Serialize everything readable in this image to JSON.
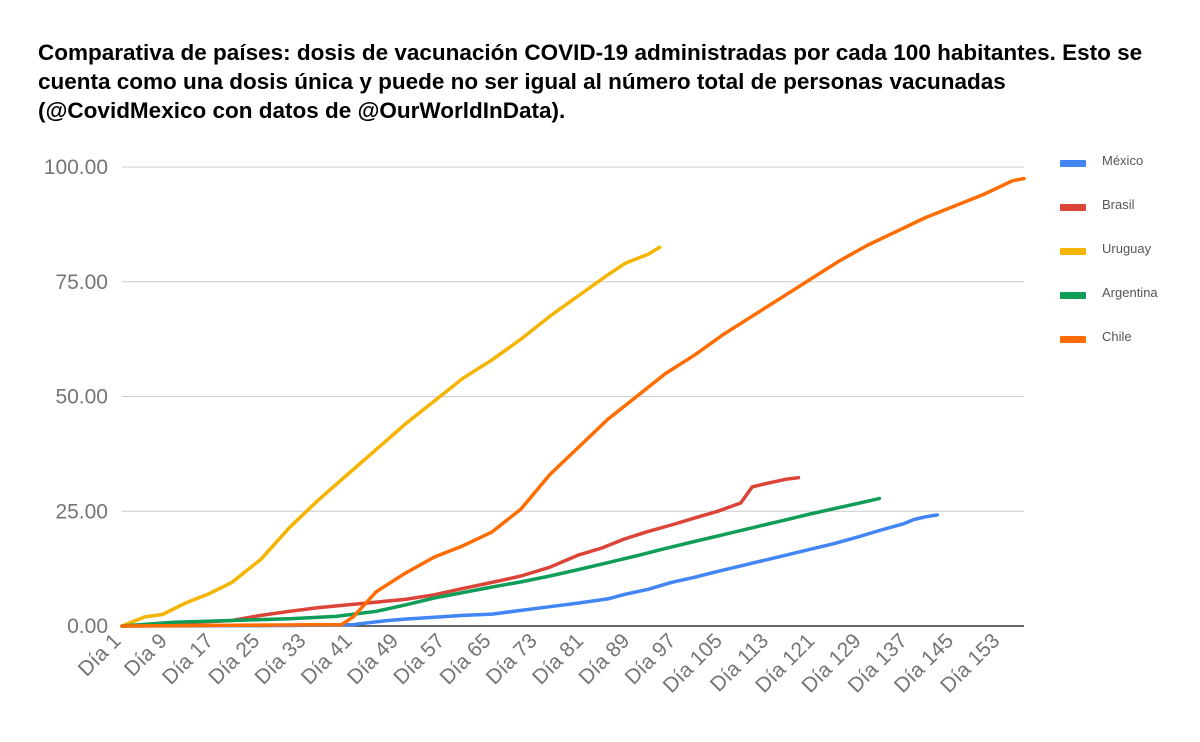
{
  "chart_data": {
    "type": "line",
    "title": "Comparativa de países:  dosis de vacunación COVID-19 administradas por cada 100 habitantes. Esto se cuenta como una dosis única y puede no ser igual al número total de personas vacunadas (@CovidMexico con datos de @OurWorldInData).",
    "xlabel": "",
    "ylabel": "",
    "ylim": [
      0,
      100
    ],
    "yticks": [
      "0.00",
      "25.00",
      "50.00",
      "75.00",
      "100.00"
    ],
    "xlim": [
      1,
      157
    ],
    "xticks": [
      {
        "day": 1,
        "label": "Día 1"
      },
      {
        "day": 9,
        "label": "Día 9"
      },
      {
        "day": 17,
        "label": "Día 17"
      },
      {
        "day": 25,
        "label": "Día 25"
      },
      {
        "day": 33,
        "label": "Día 33"
      },
      {
        "day": 41,
        "label": "Día 41"
      },
      {
        "day": 49,
        "label": "Día 49"
      },
      {
        "day": 57,
        "label": "Día 57"
      },
      {
        "day": 65,
        "label": "Día 65"
      },
      {
        "day": 73,
        "label": "Día 73"
      },
      {
        "day": 81,
        "label": "Día 81"
      },
      {
        "day": 89,
        "label": "Día 89"
      },
      {
        "day": 97,
        "label": "Día 97"
      },
      {
        "day": 105,
        "label": "Día 105"
      },
      {
        "day": 113,
        "label": "Día 113"
      },
      {
        "day": 121,
        "label": "Día 121"
      },
      {
        "day": 129,
        "label": "Día 129"
      },
      {
        "day": 137,
        "label": "Día 137"
      },
      {
        "day": 145,
        "label": "Día 145"
      },
      {
        "day": 153,
        "label": "Día 153"
      }
    ],
    "grid": true,
    "legend_position": "right",
    "series": [
      {
        "name": "México",
        "color": "#4285f4",
        "x": [
          1,
          30,
          41,
          43,
          47,
          50,
          55,
          60,
          65,
          70,
          75,
          80,
          85,
          88,
          92,
          96,
          100,
          104,
          108,
          112,
          116,
          120,
          124,
          128,
          132,
          136,
          138,
          140,
          142
        ],
        "values": [
          0,
          0.1,
          0.3,
          0.6,
          1.2,
          1.5,
          1.9,
          2.3,
          2.6,
          3.4,
          4.2,
          5.0,
          5.9,
          6.9,
          8.0,
          9.5,
          10.6,
          11.9,
          13.1,
          14.3,
          15.5,
          16.7,
          17.9,
          19.3,
          20.8,
          22.2,
          23.2,
          23.8,
          24.2
        ]
      },
      {
        "name": "Brasil",
        "color": "#db4437",
        "x": [
          1,
          20,
          25,
          30,
          35,
          40,
          45,
          50,
          55,
          60,
          65,
          70,
          75,
          80,
          84,
          88,
          92,
          96,
          100,
          104,
          108,
          110,
          113,
          116,
          118
        ],
        "values": [
          0,
          1.2,
          2.3,
          3.2,
          4.0,
          4.6,
          5.2,
          5.8,
          6.8,
          8.2,
          9.5,
          10.9,
          12.8,
          15.5,
          17.0,
          19.0,
          20.6,
          22.0,
          23.5,
          25.0,
          26.8,
          30.3,
          31.2,
          32.0,
          32.3
        ]
      },
      {
        "name": "Uruguay",
        "color": "#f4b400",
        "x": [
          1,
          5,
          8,
          12,
          16,
          20,
          25,
          30,
          35,
          40,
          45,
          50,
          55,
          60,
          65,
          70,
          75,
          80,
          85,
          88,
          90,
          92,
          94
        ],
        "values": [
          0,
          2.0,
          2.5,
          5.0,
          7.0,
          9.5,
          14.5,
          21.5,
          27.5,
          33.0,
          38.5,
          44.0,
          49.0,
          54.0,
          58.0,
          62.5,
          67.5,
          72.0,
          76.5,
          79.0,
          80.0,
          81.0,
          82.5
        ]
      },
      {
        "name": "Argentina",
        "color": "#0f9d58",
        "x": [
          1,
          10,
          20,
          30,
          38,
          45,
          50,
          55,
          60,
          65,
          70,
          75,
          80,
          85,
          90,
          95,
          100,
          105,
          110,
          115,
          120,
          125,
          130,
          132
        ],
        "values": [
          0,
          0.8,
          1.2,
          1.6,
          2.1,
          3.2,
          4.6,
          6.1,
          7.3,
          8.5,
          9.6,
          10.9,
          12.3,
          13.8,
          15.3,
          16.9,
          18.4,
          19.9,
          21.4,
          22.9,
          24.4,
          25.8,
          27.2,
          27.8
        ]
      },
      {
        "name": "Chile",
        "color": "#ff6d00",
        "x": [
          1,
          39,
          41,
          45,
          50,
          55,
          60,
          65,
          70,
          75,
          80,
          85,
          90,
          95,
          100,
          105,
          110,
          115,
          120,
          125,
          130,
          135,
          140,
          145,
          150,
          155,
          157
        ],
        "values": [
          0,
          0.3,
          2.0,
          7.5,
          11.5,
          15.0,
          17.5,
          20.5,
          25.5,
          33.0,
          39.0,
          45.0,
          50.0,
          55.0,
          59.0,
          63.5,
          67.5,
          71.5,
          75.5,
          79.5,
          83.0,
          86.0,
          89.0,
          91.5,
          94.0,
          97.0,
          97.5
        ]
      }
    ]
  }
}
